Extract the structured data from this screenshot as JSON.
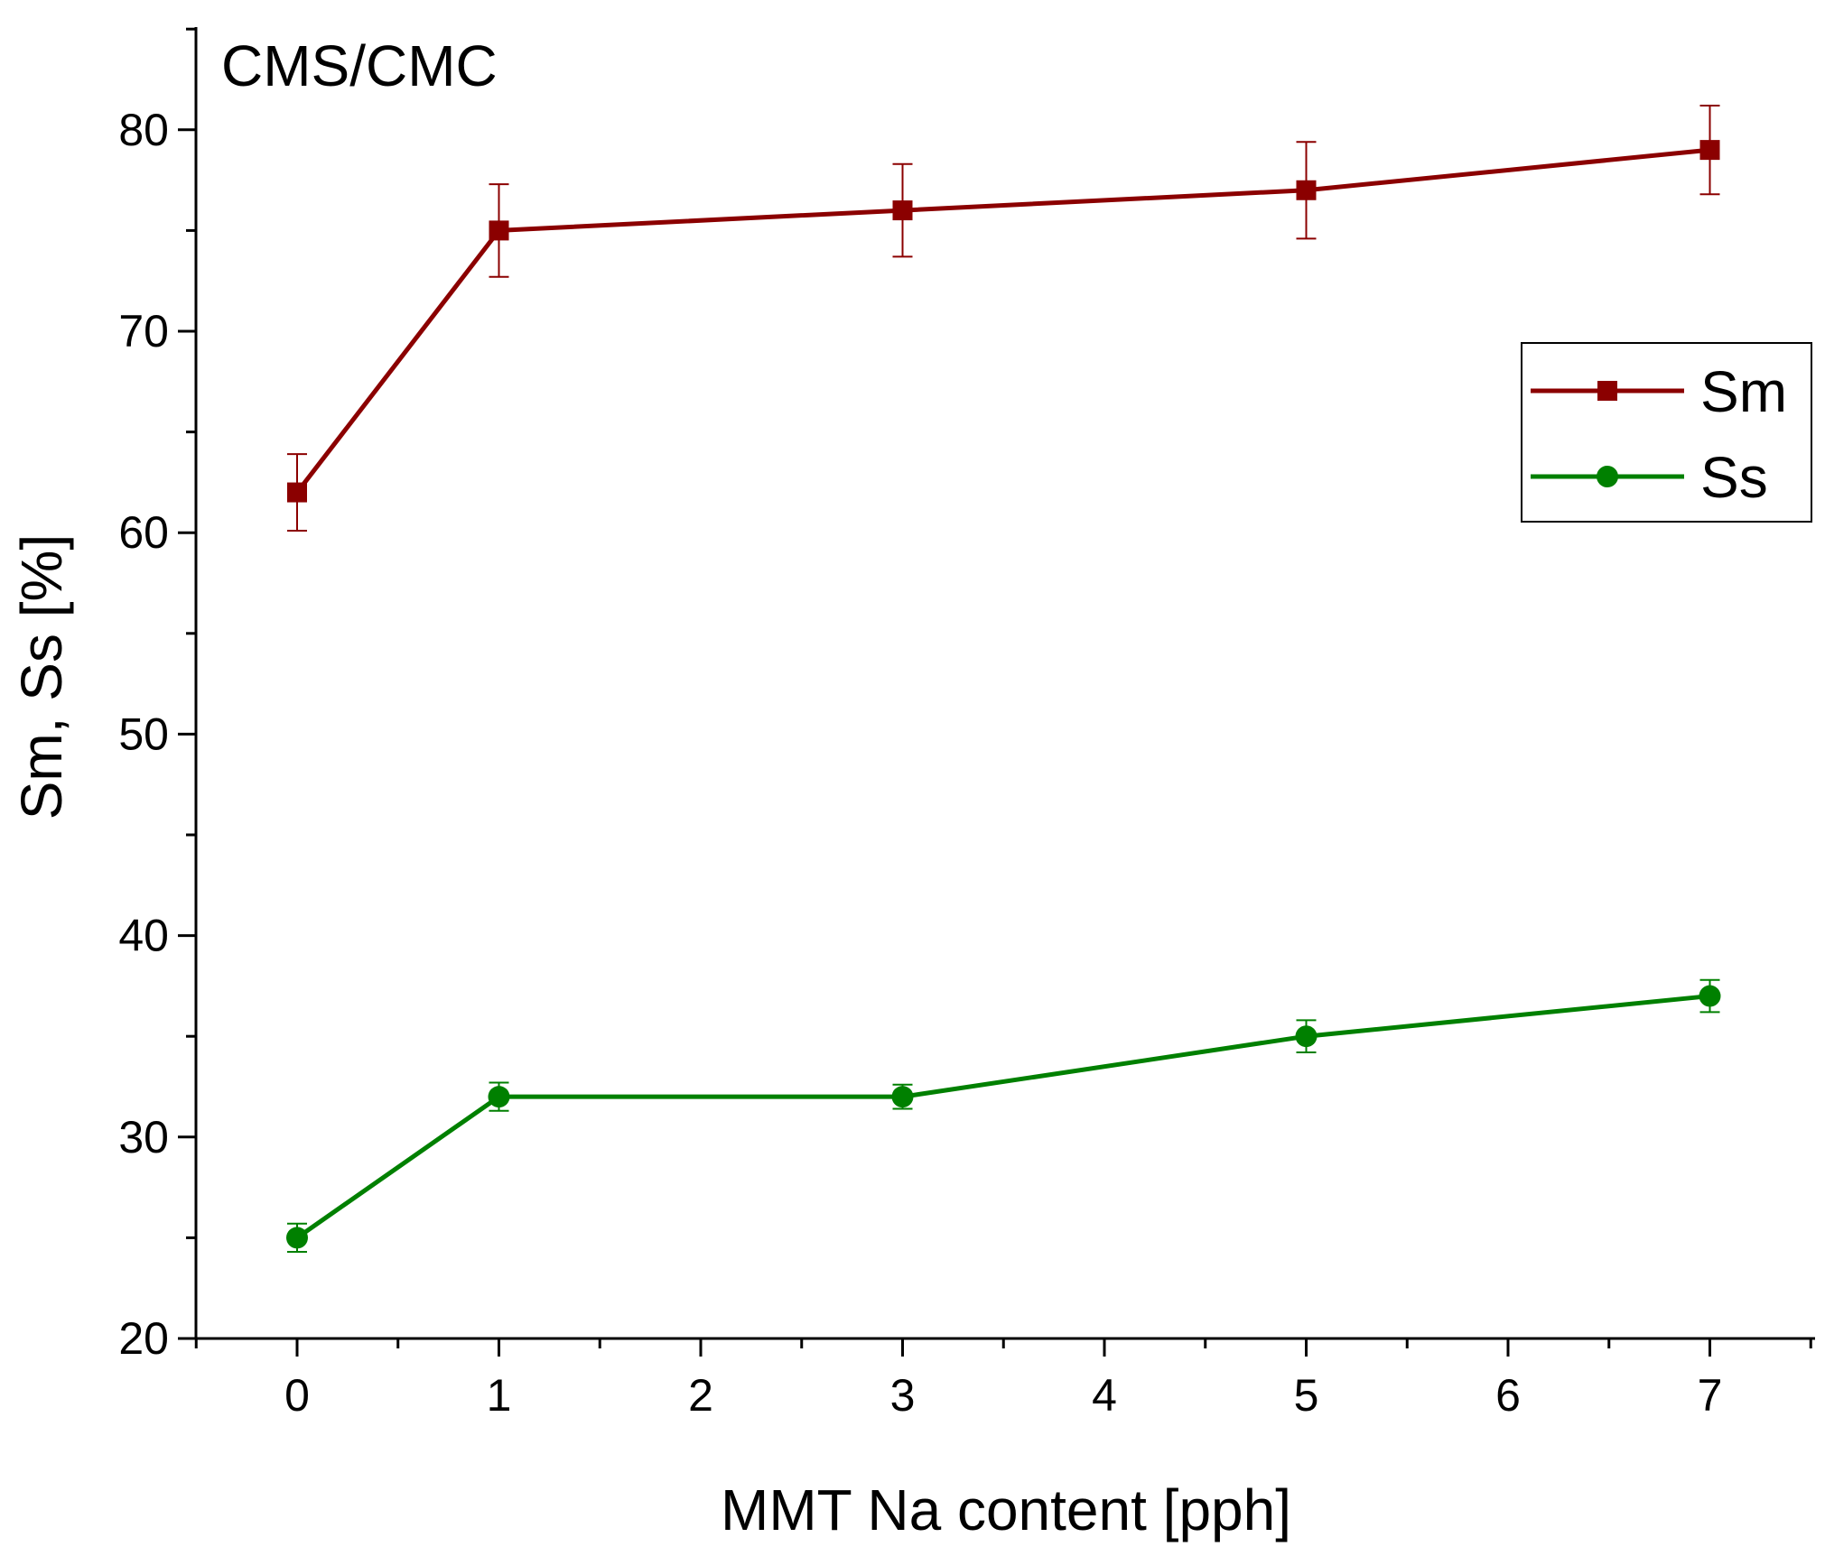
{
  "chart_data": {
    "type": "line",
    "title": "CMS/CMC",
    "xlabel": "MMT Na content [pph]",
    "ylabel": "Sm, Ss [%]",
    "xlim": [
      -0.5,
      7.5
    ],
    "ylim": [
      20,
      85
    ],
    "xticks": [
      0,
      1,
      2,
      3,
      4,
      5,
      6,
      7
    ],
    "yticks": [
      20,
      30,
      40,
      50,
      60,
      70,
      80
    ],
    "grid": false,
    "legend_position": "top-right",
    "series": [
      {
        "name": "Sm",
        "color": "#8b0000",
        "marker": "square",
        "x": [
          0,
          1,
          3,
          5,
          7
        ],
        "y": [
          62,
          75,
          76,
          77,
          79
        ],
        "error": [
          1.9,
          2.3,
          2.3,
          2.4,
          2.2
        ]
      },
      {
        "name": "Ss",
        "color": "#008000",
        "marker": "circle",
        "x": [
          0,
          1,
          3,
          5,
          7
        ],
        "y": [
          25,
          32,
          32,
          35,
          37
        ],
        "error": [
          0.7,
          0.7,
          0.6,
          0.8,
          0.8
        ]
      }
    ]
  }
}
